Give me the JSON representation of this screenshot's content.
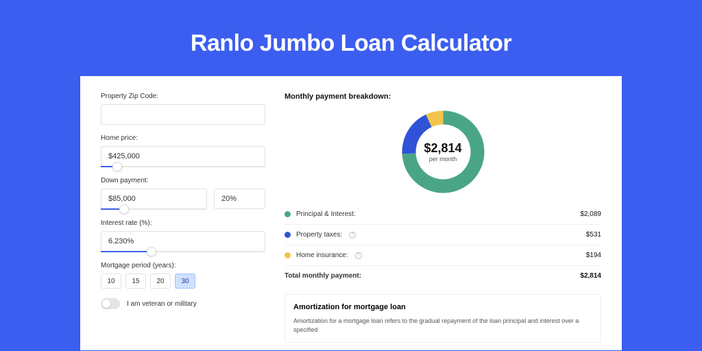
{
  "page": {
    "title": "Ranlo Jumbo Loan Calculator"
  },
  "colors": {
    "page_bg": "#3b5ef0",
    "card_bg": "#ffffff",
    "text": "#111111",
    "muted": "#555555",
    "border": "#e2e2e2",
    "slider_fill": "#3b5ef0",
    "period_selected_bg": "#cfe1ff"
  },
  "form": {
    "zip_label": "Property Zip Code:",
    "zip_value": "",
    "price_label": "Home price:",
    "price_value": "$425,000",
    "price_slider_pct": 10,
    "down_label": "Down payment:",
    "down_value": "$85,000",
    "down_pct": "20%",
    "down_slider_pct": 22,
    "rate_label": "Interest rate (%):",
    "rate_value": "6.230%",
    "rate_slider_pct": 31,
    "period_label": "Mortgage period (years):",
    "periods": [
      {
        "label": "10",
        "selected": false
      },
      {
        "label": "15",
        "selected": false
      },
      {
        "label": "20",
        "selected": false
      },
      {
        "label": "30",
        "selected": true
      }
    ],
    "veteran_label": "I am veteran or military",
    "veteran_on": false
  },
  "breakdown": {
    "title": "Monthly payment breakdown:",
    "donut": {
      "center_amount": "$2,814",
      "center_sub": "per month",
      "segments": [
        {
          "name": "principal-interest",
          "color": "#4aa586",
          "pct": 74.2
        },
        {
          "name": "property-taxes",
          "color": "#2f52d7",
          "pct": 18.9
        },
        {
          "name": "home-insurance",
          "color": "#f3c44b",
          "pct": 6.9
        }
      ],
      "ring_width": 20
    },
    "items": [
      {
        "label": "Principal & Interest:",
        "color": "#4aa586",
        "value": "$2,089",
        "info": false
      },
      {
        "label": "Property taxes:",
        "color": "#2f52d7",
        "value": "$531",
        "info": true
      },
      {
        "label": "Home insurance:",
        "color": "#f3c44b",
        "value": "$194",
        "info": true
      }
    ],
    "total_label": "Total monthly payment:",
    "total_value": "$2,814"
  },
  "amortization": {
    "title": "Amortization for mortgage loan",
    "text": "Amortization for a mortgage loan refers to the gradual repayment of the loan principal and interest over a specified"
  }
}
